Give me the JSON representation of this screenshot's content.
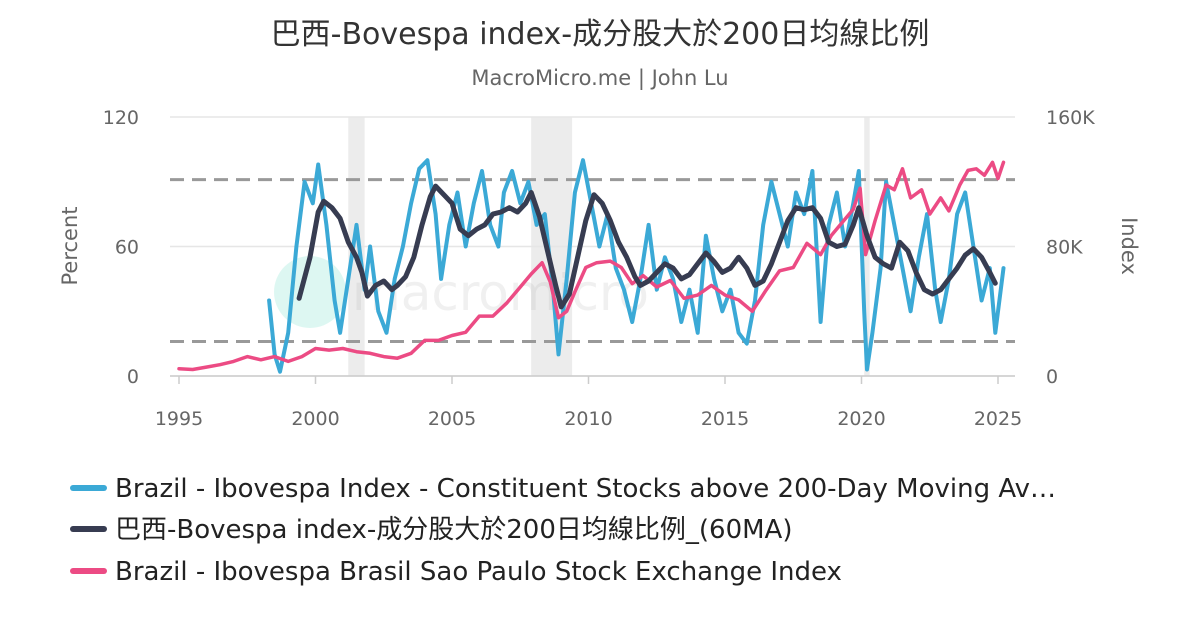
{
  "chart_data": {
    "type": "line",
    "title": "巴西-Bovespa index-成分股大於200日均線比例",
    "subtitle": "MacroMicro.me | John Lu",
    "watermark": "macromicro",
    "xlabel": "",
    "xlim": [
      1995,
      2025.5
    ],
    "x_ticks": [
      "1995",
      "2000",
      "2005",
      "2010",
      "2015",
      "2020",
      "2025"
    ],
    "y_left": {
      "label": "Percent",
      "lim": [
        0,
        120
      ],
      "ticks": [
        "0",
        "60",
        "120"
      ]
    },
    "y_right": {
      "label": "Index",
      "lim": [
        0,
        160000
      ],
      "ticks": [
        "0",
        "80K",
        "160K"
      ]
    },
    "grid": "horizontal",
    "legend_position": "bottom-left",
    "reference_lines": [
      {
        "axis": "left",
        "value": 91
      },
      {
        "axis": "left",
        "value": 16
      }
    ],
    "recession_bands": [
      [
        2001.2,
        2001.8
      ],
      [
        2007.9,
        2009.4
      ],
      [
        2020.1,
        2020.3
      ]
    ],
    "colors": {
      "constituent_pct": "#3ba9d6",
      "ma60": "#373c51",
      "ibovespa": "#ec4b84",
      "band": "#ececec",
      "ref_line": "#999999",
      "grid": "#e6e6e6"
    },
    "series": [
      {
        "name": "Brazil - Ibovespa Index - Constituent Stocks above 200-Day Moving Av…",
        "axis": "left",
        "color": "#3ba9d6",
        "points": [
          [
            1998.3,
            35
          ],
          [
            1998.5,
            10
          ],
          [
            1998.7,
            2
          ],
          [
            1999.0,
            20
          ],
          [
            1999.3,
            60
          ],
          [
            1999.6,
            90
          ],
          [
            1999.9,
            80
          ],
          [
            2000.1,
            98
          ],
          [
            2000.4,
            70
          ],
          [
            2000.7,
            35
          ],
          [
            2000.9,
            20
          ],
          [
            2001.2,
            45
          ],
          [
            2001.5,
            70
          ],
          [
            2001.8,
            40
          ],
          [
            2002.0,
            60
          ],
          [
            2002.3,
            30
          ],
          [
            2002.6,
            20
          ],
          [
            2002.9,
            45
          ],
          [
            2003.2,
            60
          ],
          [
            2003.5,
            80
          ],
          [
            2003.8,
            96
          ],
          [
            2004.1,
            100
          ],
          [
            2004.4,
            75
          ],
          [
            2004.6,
            45
          ],
          [
            2004.9,
            70
          ],
          [
            2005.2,
            85
          ],
          [
            2005.5,
            60
          ],
          [
            2005.8,
            80
          ],
          [
            2006.1,
            95
          ],
          [
            2006.4,
            70
          ],
          [
            2006.7,
            60
          ],
          [
            2006.9,
            85
          ],
          [
            2007.2,
            95
          ],
          [
            2007.5,
            80
          ],
          [
            2007.8,
            90
          ],
          [
            2008.1,
            70
          ],
          [
            2008.4,
            75
          ],
          [
            2008.7,
            40
          ],
          [
            2008.9,
            10
          ],
          [
            2009.2,
            45
          ],
          [
            2009.5,
            85
          ],
          [
            2009.8,
            100
          ],
          [
            2010.1,
            80
          ],
          [
            2010.4,
            60
          ],
          [
            2010.7,
            75
          ],
          [
            2011.0,
            50
          ],
          [
            2011.3,
            40
          ],
          [
            2011.6,
            25
          ],
          [
            2011.9,
            45
          ],
          [
            2012.2,
            70
          ],
          [
            2012.5,
            40
          ],
          [
            2012.8,
            55
          ],
          [
            2013.1,
            45
          ],
          [
            2013.4,
            25
          ],
          [
            2013.7,
            40
          ],
          [
            2014.0,
            20
          ],
          [
            2014.3,
            65
          ],
          [
            2014.6,
            45
          ],
          [
            2014.9,
            30
          ],
          [
            2015.2,
            40
          ],
          [
            2015.5,
            20
          ],
          [
            2015.8,
            15
          ],
          [
            2016.1,
            35
          ],
          [
            2016.4,
            70
          ],
          [
            2016.7,
            90
          ],
          [
            2017.0,
            75
          ],
          [
            2017.3,
            60
          ],
          [
            2017.6,
            85
          ],
          [
            2017.9,
            75
          ],
          [
            2018.2,
            95
          ],
          [
            2018.5,
            25
          ],
          [
            2018.8,
            70
          ],
          [
            2019.1,
            85
          ],
          [
            2019.4,
            60
          ],
          [
            2019.7,
            80
          ],
          [
            2019.9,
            95
          ],
          [
            2020.1,
            30
          ],
          [
            2020.2,
            3
          ],
          [
            2020.4,
            20
          ],
          [
            2020.7,
            50
          ],
          [
            2020.9,
            90
          ],
          [
            2021.2,
            70
          ],
          [
            2021.5,
            50
          ],
          [
            2021.8,
            30
          ],
          [
            2022.1,
            55
          ],
          [
            2022.4,
            75
          ],
          [
            2022.7,
            40
          ],
          [
            2022.9,
            25
          ],
          [
            2023.2,
            45
          ],
          [
            2023.5,
            75
          ],
          [
            2023.8,
            85
          ],
          [
            2024.1,
            60
          ],
          [
            2024.4,
            35
          ],
          [
            2024.7,
            50
          ],
          [
            2024.9,
            20
          ],
          [
            2025.2,
            50
          ]
        ]
      },
      {
        "name": "巴西-Bovespa index-成分股大於200日均線比例_(60MA)",
        "axis": "left",
        "color": "#373c51",
        "points": [
          [
            1999.4,
            36
          ],
          [
            1999.8,
            55
          ],
          [
            2000.1,
            76
          ],
          [
            2000.3,
            81
          ],
          [
            2000.6,
            78
          ],
          [
            2000.9,
            73
          ],
          [
            2001.2,
            62
          ],
          [
            2001.5,
            55
          ],
          [
            2001.7,
            48
          ],
          [
            2001.9,
            37
          ],
          [
            2002.2,
            42
          ],
          [
            2002.5,
            44
          ],
          [
            2002.8,
            40
          ],
          [
            2003.0,
            42
          ],
          [
            2003.3,
            46
          ],
          [
            2003.6,
            55
          ],
          [
            2003.9,
            70
          ],
          [
            2004.2,
            83
          ],
          [
            2004.4,
            88
          ],
          [
            2004.7,
            84
          ],
          [
            2005.0,
            80
          ],
          [
            2005.3,
            68
          ],
          [
            2005.6,
            65
          ],
          [
            2005.9,
            68
          ],
          [
            2006.2,
            70
          ],
          [
            2006.5,
            75
          ],
          [
            2006.8,
            76
          ],
          [
            2007.1,
            78
          ],
          [
            2007.4,
            76
          ],
          [
            2007.7,
            80
          ],
          [
            2007.9,
            85
          ],
          [
            2008.2,
            74
          ],
          [
            2008.5,
            58
          ],
          [
            2008.8,
            42
          ],
          [
            2009.0,
            32
          ],
          [
            2009.3,
            38
          ],
          [
            2009.6,
            55
          ],
          [
            2009.9,
            72
          ],
          [
            2010.2,
            84
          ],
          [
            2010.5,
            80
          ],
          [
            2010.8,
            72
          ],
          [
            2011.1,
            62
          ],
          [
            2011.4,
            55
          ],
          [
            2011.7,
            46
          ],
          [
            2011.9,
            42
          ],
          [
            2012.2,
            44
          ],
          [
            2012.5,
            48
          ],
          [
            2012.8,
            52
          ],
          [
            2013.1,
            50
          ],
          [
            2013.4,
            45
          ],
          [
            2013.7,
            47
          ],
          [
            2014.0,
            52
          ],
          [
            2014.3,
            57
          ],
          [
            2014.6,
            53
          ],
          [
            2014.9,
            48
          ],
          [
            2015.2,
            50
          ],
          [
            2015.5,
            55
          ],
          [
            2015.8,
            50
          ],
          [
            2016.1,
            42
          ],
          [
            2016.4,
            44
          ],
          [
            2016.7,
            52
          ],
          [
            2017.0,
            62
          ],
          [
            2017.3,
            72
          ],
          [
            2017.6,
            78
          ],
          [
            2017.9,
            77
          ],
          [
            2018.2,
            78
          ],
          [
            2018.5,
            73
          ],
          [
            2018.8,
            62
          ],
          [
            2019.1,
            60
          ],
          [
            2019.4,
            61
          ],
          [
            2019.7,
            70
          ],
          [
            2019.9,
            78
          ],
          [
            2020.2,
            65
          ],
          [
            2020.5,
            55
          ],
          [
            2020.8,
            52
          ],
          [
            2021.1,
            50
          ],
          [
            2021.4,
            62
          ],
          [
            2021.7,
            58
          ],
          [
            2022.0,
            48
          ],
          [
            2022.3,
            40
          ],
          [
            2022.6,
            38
          ],
          [
            2022.9,
            40
          ],
          [
            2023.2,
            45
          ],
          [
            2023.5,
            50
          ],
          [
            2023.8,
            56
          ],
          [
            2024.1,
            59
          ],
          [
            2024.4,
            55
          ],
          [
            2024.7,
            48
          ],
          [
            2024.9,
            43
          ]
        ]
      },
      {
        "name": "Brazil - Ibovespa Brasil Sao Paulo Stock Exchange Index",
        "axis": "right",
        "color": "#ec4b84",
        "points": [
          [
            1995.0,
            4500
          ],
          [
            1995.5,
            4000
          ],
          [
            1996.0,
            5500
          ],
          [
            1996.5,
            7000
          ],
          [
            1997.0,
            9000
          ],
          [
            1997.5,
            12000
          ],
          [
            1998.0,
            10000
          ],
          [
            1998.5,
            12000
          ],
          [
            1999.0,
            9000
          ],
          [
            1999.5,
            12000
          ],
          [
            2000.0,
            17000
          ],
          [
            2000.5,
            16000
          ],
          [
            2001.0,
            17000
          ],
          [
            2001.5,
            15000
          ],
          [
            2002.0,
            14000
          ],
          [
            2002.5,
            12000
          ],
          [
            2003.0,
            11000
          ],
          [
            2003.5,
            14000
          ],
          [
            2004.0,
            22000
          ],
          [
            2004.5,
            22000
          ],
          [
            2005.0,
            25000
          ],
          [
            2005.5,
            27000
          ],
          [
            2006.0,
            37000
          ],
          [
            2006.5,
            37000
          ],
          [
            2007.0,
            45000
          ],
          [
            2007.5,
            55000
          ],
          [
            2007.9,
            63000
          ],
          [
            2008.3,
            70000
          ],
          [
            2008.6,
            58000
          ],
          [
            2008.9,
            36000
          ],
          [
            2009.2,
            40000
          ],
          [
            2009.5,
            52000
          ],
          [
            2009.9,
            67000
          ],
          [
            2010.3,
            70000
          ],
          [
            2010.8,
            71000
          ],
          [
            2011.2,
            67000
          ],
          [
            2011.6,
            57000
          ],
          [
            2012.0,
            62000
          ],
          [
            2012.5,
            55000
          ],
          [
            2013.0,
            59000
          ],
          [
            2013.5,
            48000
          ],
          [
            2014.0,
            50000
          ],
          [
            2014.5,
            56000
          ],
          [
            2015.0,
            50000
          ],
          [
            2015.5,
            47000
          ],
          [
            2016.0,
            40000
          ],
          [
            2016.5,
            53000
          ],
          [
            2017.0,
            65000
          ],
          [
            2017.5,
            67000
          ],
          [
            2018.0,
            82000
          ],
          [
            2018.5,
            75000
          ],
          [
            2018.9,
            87000
          ],
          [
            2019.3,
            95000
          ],
          [
            2019.7,
            103000
          ],
          [
            2019.95,
            116000
          ],
          [
            2020.15,
            75000
          ],
          [
            2020.5,
            96000
          ],
          [
            2020.9,
            118000
          ],
          [
            2021.2,
            115000
          ],
          [
            2021.5,
            128000
          ],
          [
            2021.8,
            110000
          ],
          [
            2022.2,
            115000
          ],
          [
            2022.5,
            100000
          ],
          [
            2022.9,
            110000
          ],
          [
            2023.2,
            102000
          ],
          [
            2023.6,
            118000
          ],
          [
            2023.9,
            127000
          ],
          [
            2024.2,
            128000
          ],
          [
            2024.5,
            124000
          ],
          [
            2024.8,
            132000
          ],
          [
            2025.0,
            122000
          ],
          [
            2025.2,
            132000
          ]
        ]
      }
    ]
  }
}
